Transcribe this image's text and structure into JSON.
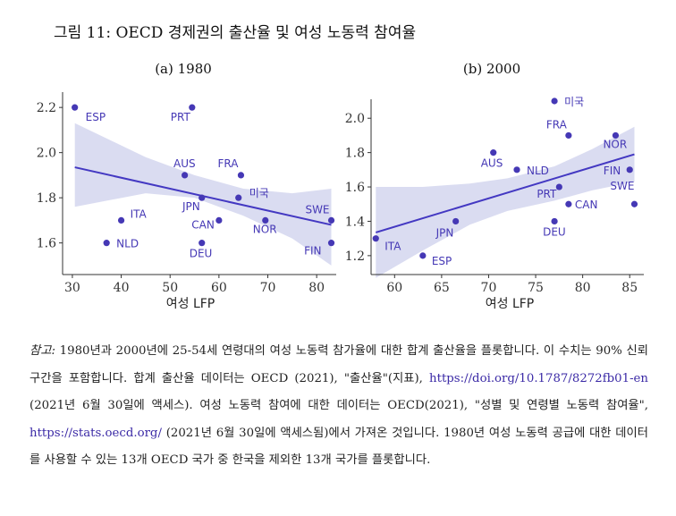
{
  "figure_title": "그림 11: OECD 경제권의 출산율 및 여성 노동력 참여율",
  "colors": {
    "point": "#4538b5",
    "line": "#4338c2",
    "band": "#d6d8f0",
    "label": "#4538b5",
    "axis": "#333333"
  },
  "chart_data": [
    {
      "type": "scatter",
      "title": "(a) 1980",
      "xlabel": "여성 LFP",
      "ylabel": "",
      "xlim": [
        28,
        84
      ],
      "ylim": [
        1.46,
        2.26
      ],
      "xticks": [
        30,
        40,
        50,
        60,
        70,
        80
      ],
      "yticks": [
        1.6,
        1.8,
        2.0,
        2.2
      ],
      "ytick_labels": [
        "1.6",
        "1.8",
        "2.0",
        "2.2"
      ],
      "grid": false,
      "points": [
        {
          "label": "ESP",
          "x": 30.5,
          "y": 2.2
        },
        {
          "label": "PRT",
          "x": 54.5,
          "y": 2.2
        },
        {
          "label": "FRA",
          "x": 64.5,
          "y": 1.9
        },
        {
          "label": "AUS",
          "x": 53.0,
          "y": 1.9
        },
        {
          "label": "미국",
          "x": 64.0,
          "y": 1.8
        },
        {
          "label": "JPN",
          "x": 56.5,
          "y": 1.8
        },
        {
          "label": "ITA",
          "x": 40.0,
          "y": 1.7
        },
        {
          "label": "CAN",
          "x": 60.0,
          "y": 1.7
        },
        {
          "label": "NOR",
          "x": 69.5,
          "y": 1.7
        },
        {
          "label": "SWE",
          "x": 83.0,
          "y": 1.7
        },
        {
          "label": "NLD",
          "x": 37.0,
          "y": 1.6
        },
        {
          "label": "DEU",
          "x": 56.5,
          "y": 1.6
        },
        {
          "label": "FIN",
          "x": 83.0,
          "y": 1.6
        }
      ],
      "fit": {
        "x": [
          30.5,
          83.0
        ],
        "y": [
          1.935,
          1.68
        ]
      },
      "ci_upper": [
        [
          30.5,
          2.13
        ],
        [
          45,
          1.98
        ],
        [
          55,
          1.9
        ],
        [
          65,
          1.84
        ],
        [
          75,
          1.82
        ],
        [
          83,
          1.84
        ]
      ],
      "ci_lower": [
        [
          30.5,
          1.76
        ],
        [
          45,
          1.82
        ],
        [
          55,
          1.8
        ],
        [
          65,
          1.72
        ],
        [
          75,
          1.62
        ],
        [
          83,
          1.5
        ]
      ]
    },
    {
      "type": "scatter",
      "title": "(b) 2000",
      "xlabel": "여성 LFP",
      "ylabel": "",
      "xlim": [
        57.5,
        86.5
      ],
      "ylim": [
        1.09,
        2.1
      ],
      "xticks": [
        60,
        65,
        70,
        75,
        80,
        85
      ],
      "yticks": [
        1.2,
        1.4,
        1.6,
        1.8,
        2.0
      ],
      "ytick_labels": [
        "1.2",
        "1.4",
        "1.6",
        "1.8",
        "2.0"
      ],
      "grid": false,
      "points": [
        {
          "label": "미국",
          "x": 77.0,
          "y": 2.1
        },
        {
          "label": "FRA",
          "x": 78.5,
          "y": 1.9
        },
        {
          "label": "NOR",
          "x": 83.5,
          "y": 1.9
        },
        {
          "label": "AUS",
          "x": 70.5,
          "y": 1.8
        },
        {
          "label": "NLD",
          "x": 73.0,
          "y": 1.7
        },
        {
          "label": "FIN",
          "x": 85.0,
          "y": 1.7
        },
        {
          "label": "PRT",
          "x": 77.5,
          "y": 1.6
        },
        {
          "label": "CAN",
          "x": 78.5,
          "y": 1.5
        },
        {
          "label": "SWE",
          "x": 85.5,
          "y": 1.5
        },
        {
          "label": "JPN",
          "x": 66.5,
          "y": 1.4
        },
        {
          "label": "DEU",
          "x": 77.0,
          "y": 1.4
        },
        {
          "label": "ITA",
          "x": 58.0,
          "y": 1.3
        },
        {
          "label": "ESP",
          "x": 63.0,
          "y": 1.2
        }
      ],
      "fit": {
        "x": [
          58.0,
          85.5
        ],
        "y": [
          1.335,
          1.79
        ]
      },
      "ci_upper": [
        [
          58.0,
          1.6
        ],
        [
          63,
          1.6
        ],
        [
          68,
          1.62
        ],
        [
          72,
          1.65
        ],
        [
          77,
          1.72
        ],
        [
          81,
          1.82
        ],
        [
          85.5,
          1.95
        ]
      ],
      "ci_lower": [
        [
          58.0,
          1.07
        ],
        [
          63,
          1.23
        ],
        [
          68,
          1.38
        ],
        [
          72,
          1.46
        ],
        [
          77,
          1.52
        ],
        [
          81,
          1.58
        ],
        [
          85.5,
          1.63
        ]
      ]
    }
  ],
  "note": {
    "label": "참고:",
    "text1": " 1980년과 2000년에 25-54세 연령대의 여성 노동력 참가율에 대한 합계 출산율을 플롯합니다. 이 수치는 90% 신뢰 구간을 포함합니다. 합계 출산율 데이터는 OECD (2021), \"출산율\"(지표), ",
    "link1": "https://doi.org/10.1787/8272fb01-en",
    "text2": " (2021년 6월 30일에 액세스). 여성 노동력 참여에 대한 데이터는 OECD(2021), \"성별 및 연령별 노동력 참여율\", ",
    "link2": "https://stats.oecd.org/",
    "text3": " (2021년 6월 30일에 액세스됨)에서 가져온 것입니다. 1980년 여성 노동력 공급에 대한 데이터를 사용할 수 있는 13개 OECD 국가 중 한국을 제외한 13개 국가를 플롯합니다."
  }
}
